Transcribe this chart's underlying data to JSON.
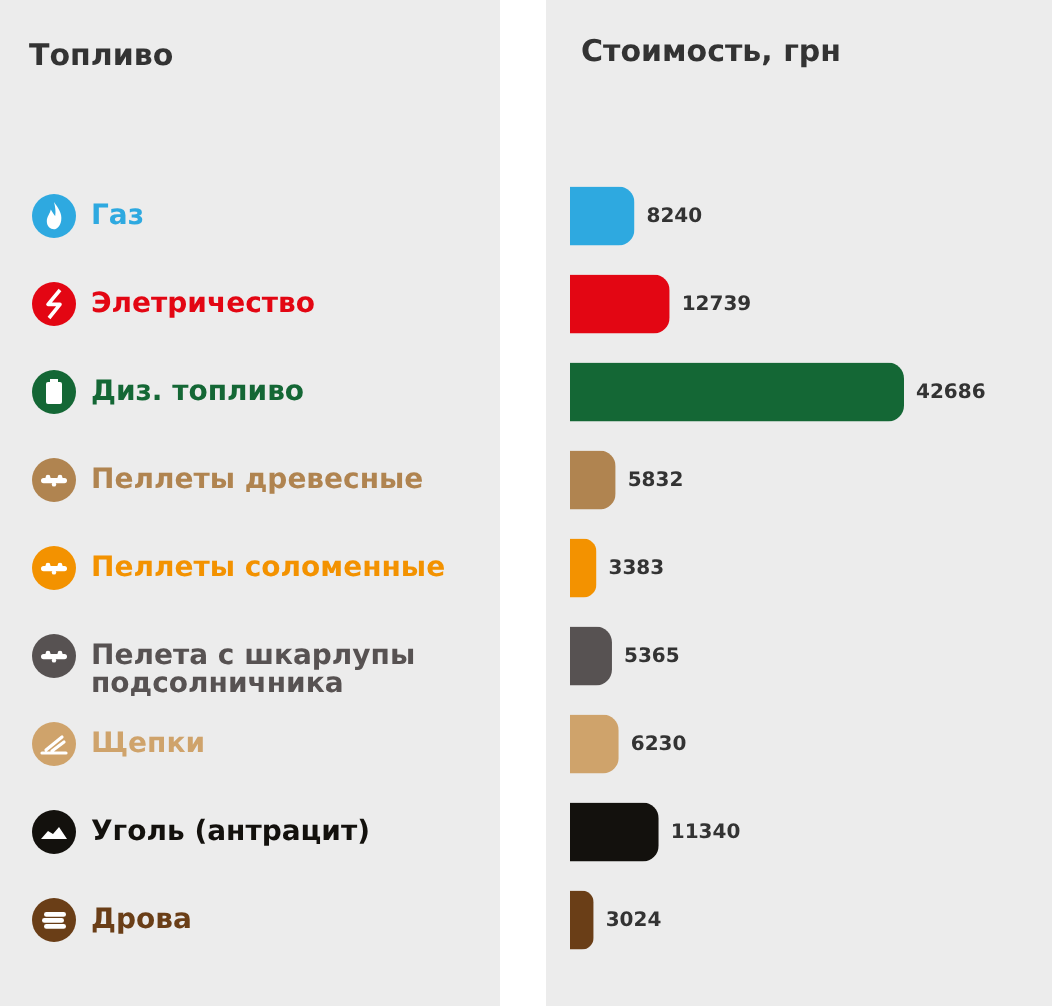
{
  "chart_data": {
    "type": "bar",
    "orientation": "horizontal",
    "xlabel": "Стоимость, грн",
    "ylabel": "Топливо",
    "categories": [
      "Газ",
      "Элетричество",
      "Диз. топливо",
      "Пеллеты древесные",
      "Пеллеты соломенные",
      "Пелета с шкарлупы подсолничника",
      "Щепки",
      "Уголь (антрацит)",
      "Дрова"
    ],
    "values": [
      8240,
      12739,
      42686,
      5832,
      3383,
      5365,
      6230,
      11340,
      3024
    ],
    "colors": [
      "#2ea9e0",
      "#e30613",
      "#146735",
      "#b08450",
      "#f39200",
      "#575252",
      "#cfa36b",
      "#13110d",
      "#6a3e17"
    ],
    "data_labels": true,
    "tick_labels": "y"
  }
}
